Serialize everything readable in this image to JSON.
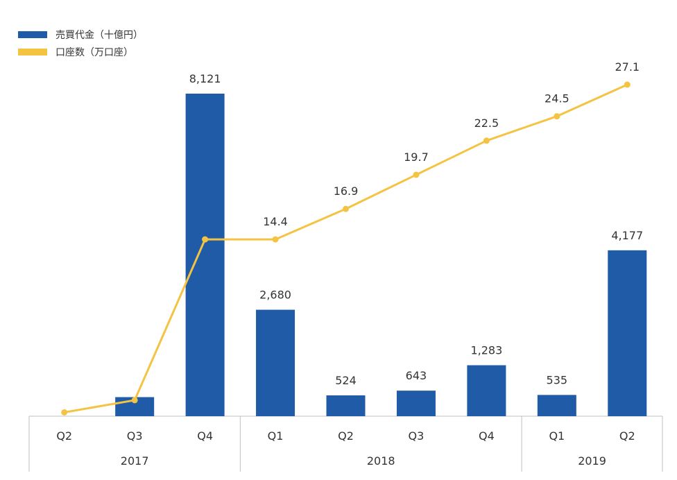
{
  "chart_data": {
    "type": "bar",
    "categories": [
      "Q2",
      "Q3",
      "Q4",
      "Q1",
      "Q2",
      "Q3",
      "Q4",
      "Q1",
      "Q2"
    ],
    "groups": [
      {
        "label": "2017",
        "count": 3
      },
      {
        "label": "2018",
        "count": 4
      },
      {
        "label": "2019",
        "count": 2
      }
    ],
    "series": [
      {
        "name": "売買代金（十億円）",
        "kind": "bar",
        "color": "#1f5ba6",
        "values": [
          0,
          480,
          8121,
          2680,
          524,
          643,
          1283,
          535,
          4177
        ],
        "labels": [
          "",
          "",
          "8,121",
          "2,680",
          "524",
          "643",
          "1,283",
          "535",
          "4,177"
        ]
      },
      {
        "name": "口座数（万口座）",
        "kind": "line",
        "color": "#f5c342",
        "values": [
          0.2,
          1.2,
          14.4,
          14.4,
          16.9,
          19.7,
          22.5,
          24.5,
          27.1
        ],
        "labels": [
          "",
          "",
          "",
          "14.4",
          "16.9",
          "19.7",
          "22.5",
          "24.5",
          "27.1"
        ]
      }
    ],
    "legend": "top-left",
    "grid": false
  }
}
